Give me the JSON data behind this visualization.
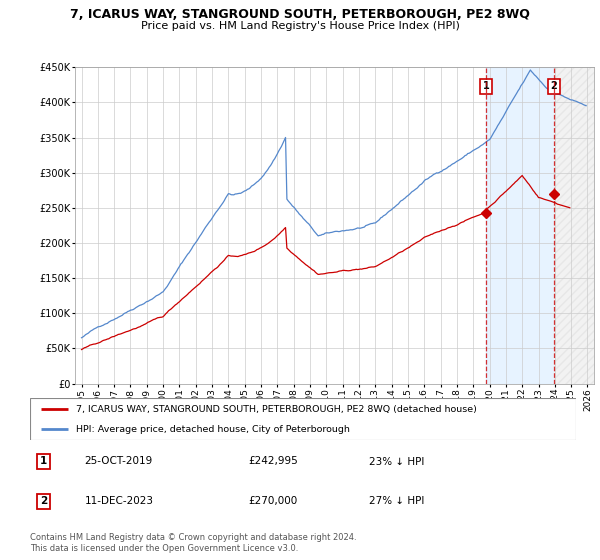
{
  "title": "7, ICARUS WAY, STANGROUND SOUTH, PETERBOROUGH, PE2 8WQ",
  "subtitle": "Price paid vs. HM Land Registry's House Price Index (HPI)",
  "legend_line1": "7, ICARUS WAY, STANGROUND SOUTH, PETERBOROUGH, PE2 8WQ (detached house)",
  "legend_line2": "HPI: Average price, detached house, City of Peterborough",
  "annotation1_num": "1",
  "annotation1_date": "25-OCT-2019",
  "annotation1_price": "£242,995",
  "annotation1_hpi": "23% ↓ HPI",
  "annotation2_num": "2",
  "annotation2_date": "11-DEC-2023",
  "annotation2_price": "£270,000",
  "annotation2_hpi": "27% ↓ HPI",
  "footnote": "Contains HM Land Registry data © Crown copyright and database right 2024.\nThis data is licensed under the Open Government Licence v3.0.",
  "hpi_color": "#5588cc",
  "price_color": "#cc0000",
  "ylim": [
    0,
    450000
  ],
  "yticks": [
    0,
    50000,
    100000,
    150000,
    200000,
    250000,
    300000,
    350000,
    400000,
    450000
  ],
  "sale1_x": 2019.79,
  "sale1_y": 242995,
  "sale2_x": 2023.95,
  "sale2_y": 270000,
  "xmin": 1995,
  "xmax": 2026
}
